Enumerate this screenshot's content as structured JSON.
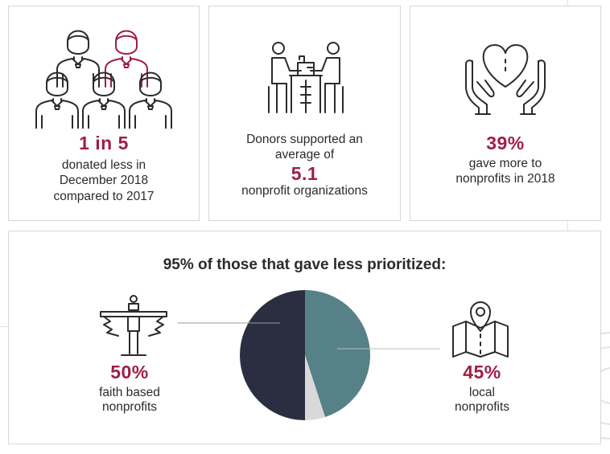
{
  "colors": {
    "accent": "#9e1f45",
    "text": "#2b2b2b",
    "pie_faith": "#2a2e40",
    "pie_local": "#568186",
    "pie_other": "#d9d9d9"
  },
  "stats": [
    {
      "icon": "people-group-icon",
      "value": "1 in 5",
      "lines": [
        "donated less in",
        "December 2018",
        "compared to 2017"
      ]
    },
    {
      "icon": "meeting-table-icon",
      "lines_before": [
        "Donors supported an",
        "average of"
      ],
      "value": "5.1",
      "lines_after": [
        "nonprofit organizations"
      ]
    },
    {
      "icon": "heart-hands-icon",
      "value": "39%",
      "lines": [
        "gave more to",
        "nonprofits in 2018"
      ]
    }
  ],
  "priorities": {
    "heading": "95% of those that gave less prioritized:",
    "left": {
      "icon": "winged-cross-icon",
      "value": "50%",
      "lines": [
        "faith based",
        "nonprofits"
      ]
    },
    "right": {
      "icon": "map-pin-icon",
      "value": "45%",
      "lines": [
        "local",
        "nonprofits"
      ]
    }
  },
  "chart_data": {
    "type": "pie",
    "slices": [
      {
        "label": "faith based nonprofits",
        "value": 50,
        "color": "#2a2e40"
      },
      {
        "label": "local nonprofits",
        "value": 45,
        "color": "#568186"
      },
      {
        "label": "",
        "value": 5,
        "color": "#d9d9d9"
      }
    ]
  }
}
